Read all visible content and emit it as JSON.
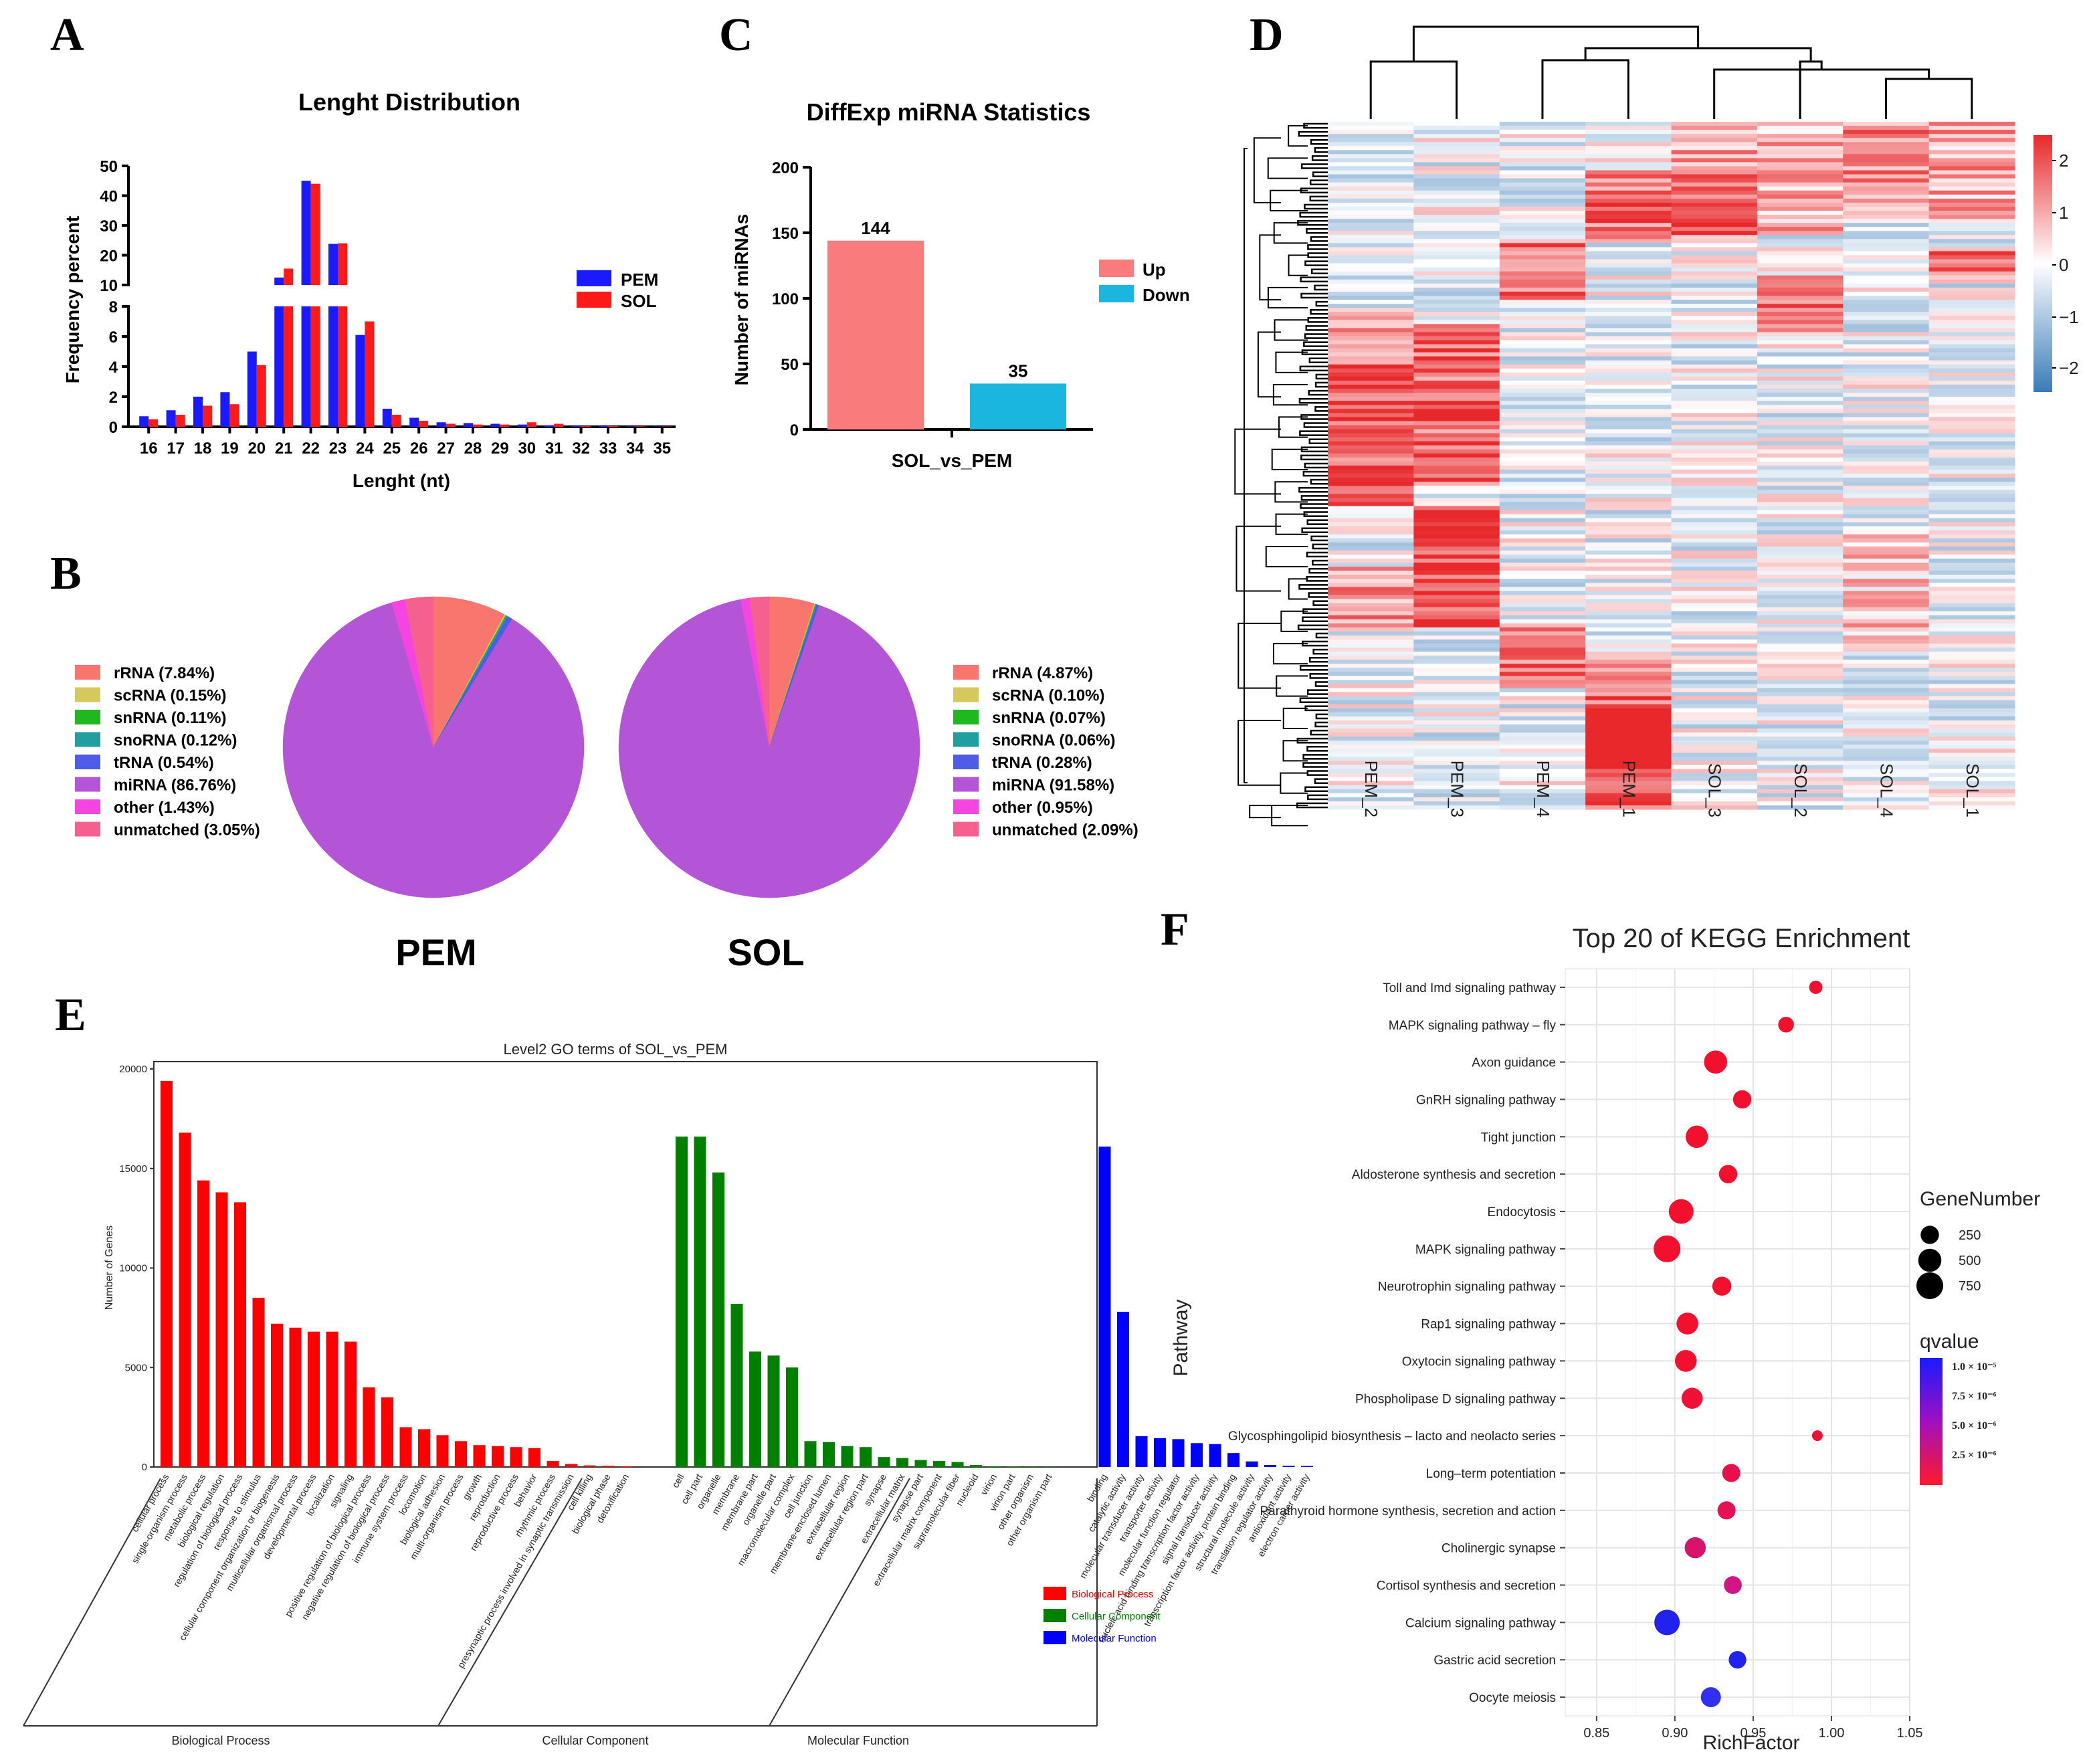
{
  "chart_data": [
    {
      "panel": "A",
      "type": "bar",
      "title": "Lenght Distribution",
      "xlabel": "Lenght (nt)",
      "ylabel": "Frequency percent",
      "axis_break": true,
      "ylim_lower": [
        0,
        8
      ],
      "ylim_upper": [
        10,
        50
      ],
      "yticks_lower": [
        "0",
        "2",
        "4",
        "6",
        "8"
      ],
      "yticks_upper": [
        "10",
        "20",
        "30",
        "40",
        "50"
      ],
      "categories": [
        "16",
        "17",
        "18",
        "19",
        "20",
        "21",
        "22",
        "23",
        "24",
        "25",
        "26",
        "27",
        "28",
        "29",
        "30",
        "31",
        "32",
        "33",
        "34",
        "35"
      ],
      "series": [
        {
          "name": "PEM",
          "color": "#1a1aff",
          "values": [
            0.7,
            1.1,
            2.0,
            2.3,
            5.0,
            12.5,
            45.0,
            23.8,
            6.1,
            1.2,
            0.6,
            0.3,
            0.25,
            0.2,
            0.15,
            0.1,
            0.05,
            0.05,
            0.03,
            0.02
          ]
        },
        {
          "name": "SOL",
          "color": "#ff1a1a",
          "values": [
            0.5,
            0.8,
            1.4,
            1.5,
            4.1,
            15.5,
            44.0,
            24.0,
            7.0,
            0.8,
            0.4,
            0.2,
            0.15,
            0.15,
            0.3,
            0.2,
            0.05,
            0.05,
            0.03,
            0.02
          ]
        }
      ]
    },
    {
      "panel": "B",
      "type": "pie",
      "groups": [
        {
          "name": "PEM",
          "slices": [
            {
              "label": "rRNA (7.84%)",
              "value": 7.84,
              "color": "#f8766d"
            },
            {
              "label": "scRNA (0.15%)",
              "value": 0.15,
              "color": "#d4c95a"
            },
            {
              "label": "snRNA (0.11%)",
              "value": 0.11,
              "color": "#1fb81f"
            },
            {
              "label": "snoRNA (0.12%)",
              "value": 0.12,
              "color": "#1f9f9f"
            },
            {
              "label": "tRNA (0.54%)",
              "value": 0.54,
              "color": "#4f5ce8"
            },
            {
              "label": "miRNA (86.76%)",
              "value": 86.76,
              "color": "#b355d6"
            },
            {
              "label": "other (1.43%)",
              "value": 1.43,
              "color": "#f545e0"
            },
            {
              "label": "unmatched (3.05%)",
              "value": 3.05,
              "color": "#f5608f"
            }
          ]
        },
        {
          "name": "SOL",
          "slices": [
            {
              "label": "rRNA (4.87%)",
              "value": 4.87,
              "color": "#f8766d"
            },
            {
              "label": "scRNA (0.10%)",
              "value": 0.1,
              "color": "#d4c95a"
            },
            {
              "label": "snRNA (0.07%)",
              "value": 0.07,
              "color": "#1fb81f"
            },
            {
              "label": "snoRNA (0.06%)",
              "value": 0.06,
              "color": "#1f9f9f"
            },
            {
              "label": "tRNA (0.28%)",
              "value": 0.28,
              "color": "#4f5ce8"
            },
            {
              "label": "miRNA (91.58%)",
              "value": 91.58,
              "color": "#b355d6"
            },
            {
              "label": "other (0.95%)",
              "value": 0.95,
              "color": "#f545e0"
            },
            {
              "label": "unmatched (2.09%)",
              "value": 2.09,
              "color": "#f5608f"
            }
          ]
        }
      ]
    },
    {
      "panel": "C",
      "type": "bar",
      "title": "DiffExp miRNA Statistics",
      "xlabel": "",
      "ylabel": "Number of miRNAs",
      "ylim": [
        0,
        200
      ],
      "yticks": [
        "0",
        "50",
        "100",
        "150",
        "200"
      ],
      "categories": [
        "SOL_vs_PEM"
      ],
      "series": [
        {
          "name": "Up",
          "color": "#fa7b7b",
          "values": [
            144
          ],
          "label": "144"
        },
        {
          "name": "Down",
          "color": "#1bb6e0",
          "values": [
            35
          ],
          "label": "35"
        }
      ]
    },
    {
      "panel": "D",
      "type": "heatmap",
      "columns": [
        "PEM_2",
        "PEM_3",
        "PEM_4",
        "PEM_1",
        "SOL_3",
        "SOL_2",
        "SOL_4",
        "SOL_1"
      ],
      "colorbar_ticks": [
        "2",
        "1",
        "0",
        "−1",
        "−2"
      ],
      "low_color": "#3a7bb7",
      "mid_color": "#ffffff",
      "high_color": "#e8282b"
    },
    {
      "panel": "E",
      "type": "bar",
      "title": "Level2 GO terms of SOL_vs_PEM",
      "ylabel": "Number of Genes",
      "ylim": [
        0,
        20000
      ],
      "yticks": [
        "0",
        "5000",
        "10000",
        "15000",
        "20000"
      ],
      "legend": [
        "Biological Process",
        "Cellular Component",
        "Molecular Function"
      ],
      "groups": [
        {
          "name": "Biological Process",
          "color": "#ff0000",
          "categories": [
            "cellular process",
            "single-organism process",
            "metabolic process",
            "biological regulation",
            "regulation of biological process",
            "response to stimulus",
            "cellular component organization or biogenesis",
            "multicellular organismal process",
            "developmental process",
            "localization",
            "signaling",
            "positive regulation of biological process",
            "negative regulation of biological process",
            "immune system process",
            "locomotion",
            "biological adhesion",
            "multi-organism process",
            "growth",
            "reproduction",
            "reproductive process",
            "behavior",
            "rhythmic process",
            "presynaptic process involved in synaptic transmission",
            "cell killing",
            "biological phase",
            "detoxification"
          ],
          "values": [
            19400,
            16800,
            14400,
            13800,
            13300,
            8500,
            7200,
            7000,
            6800,
            6800,
            6300,
            4000,
            3500,
            2000,
            1900,
            1600,
            1300,
            1100,
            1050,
            1000,
            950,
            300,
            150,
            80,
            60,
            40
          ]
        },
        {
          "name": "Cellular Component",
          "color": "#008000",
          "categories": [
            "cell",
            "cell part",
            "organelle",
            "membrane",
            "membrane part",
            "organelle part",
            "macromolecular complex",
            "cell junction",
            "membrane-enclosed lumen",
            "extracellular region",
            "extracellular region part",
            "synapse",
            "extracellular matrix",
            "synapse part",
            "extracellular matrix component",
            "supramolecular fiber",
            "nucleoid",
            "virion",
            "virion part",
            "other organism",
            "other organism part"
          ],
          "values": [
            16600,
            16600,
            14800,
            8200,
            5800,
            5600,
            5000,
            1300,
            1250,
            1050,
            1000,
            500,
            450,
            350,
            300,
            250,
            100,
            40,
            30,
            20,
            15
          ]
        },
        {
          "name": "Molecular Function",
          "color": "#0000ff",
          "categories": [
            "binding",
            "catalytic activity",
            "molecular transducer activity",
            "transporter activity",
            "molecular function regulator",
            "nucleic acid binding transcription factor activity",
            "signal transducer activity",
            "transcription factor activity, protein binding",
            "structural molecule activity",
            "translation regulator activity",
            "antioxidant activity",
            "electron carrier activity"
          ],
          "values": [
            16100,
            7800,
            1550,
            1450,
            1400,
            1200,
            1150,
            700,
            280,
            100,
            60,
            50
          ]
        }
      ],
      "group_labels": [
        "Biological Process",
        "Cellular Component",
        "Molecular Function"
      ]
    },
    {
      "panel": "F",
      "type": "scatter",
      "title": "Top 20 of KEGG Enrichment",
      "xlabel": "RichFactor",
      "ylabel": "Pathway",
      "xlim": [
        0.83,
        1.05
      ],
      "xticks": [
        "0.85",
        "0.90",
        "0.95",
        "1.00",
        "1.05"
      ],
      "size_legend_title": "GeneNumber",
      "size_legend": [
        "250",
        "500",
        "750"
      ],
      "color_legend_title": "qvalue",
      "color_legend": [
        "1.0 × 10⁻⁵",
        "7.5 × 10⁻⁶",
        "5.0 × 10⁻⁶",
        "2.5 × 10⁻⁶"
      ],
      "points": [
        {
          "pathway": "Toll and Imd signaling pathway",
          "richfactor": 0.99,
          "genes": 80,
          "color": "#f2102e"
        },
        {
          "pathway": "MAPK signaling pathway – fly",
          "richfactor": 0.971,
          "genes": 150,
          "color": "#f2102e"
        },
        {
          "pathway": "Axon guidance",
          "richfactor": 0.926,
          "genes": 500,
          "color": "#f2102e"
        },
        {
          "pathway": "GnRH signaling pathway",
          "richfactor": 0.943,
          "genes": 250,
          "color": "#f2102e"
        },
        {
          "pathway": "Tight junction",
          "richfactor": 0.914,
          "genes": 450,
          "color": "#f2102e"
        },
        {
          "pathway": "Aldosterone synthesis and secretion",
          "richfactor": 0.934,
          "genes": 250,
          "color": "#f2102e"
        },
        {
          "pathway": "Endocytosis",
          "richfactor": 0.904,
          "genes": 600,
          "color": "#f2102e"
        },
        {
          "pathway": "MAPK signaling pathway",
          "richfactor": 0.895,
          "genes": 750,
          "color": "#f2102e"
        },
        {
          "pathway": "Neurotrophin signaling pathway",
          "richfactor": 0.93,
          "genes": 280,
          "color": "#f2102e"
        },
        {
          "pathway": "Rap1 signaling pathway",
          "richfactor": 0.908,
          "genes": 420,
          "color": "#f2102e"
        },
        {
          "pathway": "Oxytocin signaling pathway",
          "richfactor": 0.907,
          "genes": 420,
          "color": "#f2102e"
        },
        {
          "pathway": "Phospholipase D signaling pathway",
          "richfactor": 0.911,
          "genes": 380,
          "color": "#f01035"
        },
        {
          "pathway": "Glycosphingolipid biosynthesis – lacto and neolacto series",
          "richfactor": 0.991,
          "genes": 30,
          "color": "#f01035"
        },
        {
          "pathway": "Long–term potentiation",
          "richfactor": 0.936,
          "genes": 240,
          "color": "#e8104a"
        },
        {
          "pathway": "Parathyroid hormone synthesis, secretion and action",
          "richfactor": 0.933,
          "genes": 240,
          "color": "#e61055"
        },
        {
          "pathway": "Cholinergic synapse",
          "richfactor": 0.913,
          "genes": 380,
          "color": "#d6146d"
        },
        {
          "pathway": "Cortisol synthesis and secretion",
          "richfactor": 0.937,
          "genes": 230,
          "color": "#d01585"
        },
        {
          "pathway": "Calcium signaling pathway",
          "richfactor": 0.895,
          "genes": 650,
          "color": "#2222ee"
        },
        {
          "pathway": "Gastric acid secretion",
          "richfactor": 0.94,
          "genes": 220,
          "color": "#2222ee"
        },
        {
          "pathway": "Oocyte meiosis",
          "richfactor": 0.923,
          "genes": 330,
          "color": "#3030ee"
        }
      ]
    }
  ]
}
